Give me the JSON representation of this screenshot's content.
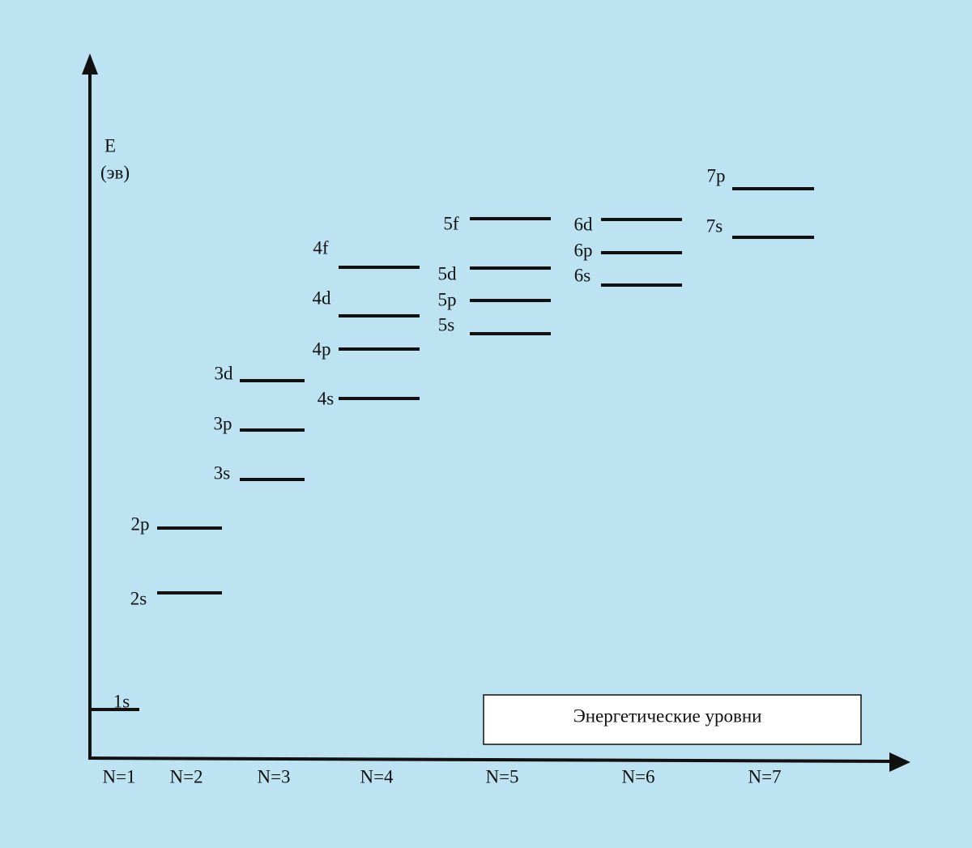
{
  "y_axis_label": {
    "symbol": "E",
    "unit": "(эв)"
  },
  "legend_box": "Энергетические уровни",
  "shells": [
    {
      "label": "N=1",
      "levels": [
        "1s"
      ]
    },
    {
      "label": "N=2",
      "levels": [
        "2s",
        "2p"
      ]
    },
    {
      "label": "N=3",
      "levels": [
        "3s",
        "3p",
        "3d"
      ]
    },
    {
      "label": "N=4",
      "levels": [
        "4s",
        "4p",
        "4d",
        "4f"
      ]
    },
    {
      "label": "N=5",
      "levels": [
        "5s",
        "5p",
        "5d",
        "5f"
      ]
    },
    {
      "label": "N=6",
      "levels": [
        "6s",
        "6p",
        "6d"
      ]
    },
    {
      "label": "N=7",
      "levels": [
        "7s",
        "7p"
      ]
    }
  ]
}
